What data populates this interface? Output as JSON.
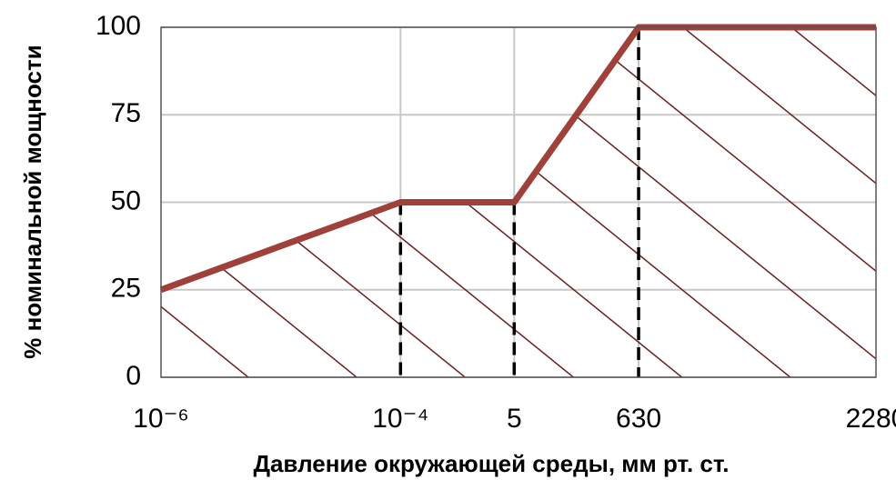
{
  "chart_data": {
    "type": "line",
    "x_label": "Давление окружающей среды, мм рт. ст.",
    "y_label": "% номинальной мощности",
    "categories": [
      "10⁻⁶",
      "10⁻⁴",
      "5",
      "630",
      "2280"
    ],
    "series": [
      {
        "color": "#a0403a",
        "values": [
          25,
          50,
          50,
          100,
          100
        ]
      }
    ],
    "ylim": [
      0,
      100
    ],
    "yticks": [
      0,
      25,
      50,
      75,
      100
    ],
    "grid": true
  }
}
